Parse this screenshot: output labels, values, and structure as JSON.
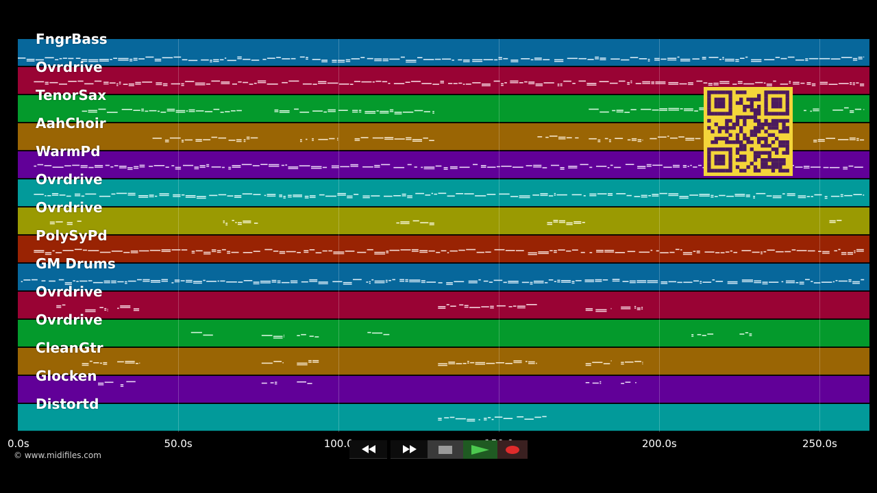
{
  "colors": {
    "background": "#000000",
    "qr_light": "#f4d53a",
    "qr_dark": "#4b1a5e"
  },
  "timeline": {
    "duration_seconds": 265.5,
    "ticks": [
      {
        "seconds": 0,
        "label": "0.0s"
      },
      {
        "seconds": 50,
        "label": "50.0s"
      },
      {
        "seconds": 100,
        "label": "100.0"
      },
      {
        "seconds": 150,
        "label": "150.0"
      },
      {
        "seconds": 200,
        "label": "200.0s"
      },
      {
        "seconds": 250,
        "label": "250.0s"
      }
    ]
  },
  "tracks": [
    {
      "name": "FngrBass",
      "color": "#07679b",
      "note_color": "#d9ecf7",
      "segments": [
        [
          0,
          264,
          0.7
        ]
      ]
    },
    {
      "name": "Ovrdrive",
      "color": "#990334",
      "note_color": "#f6d6df",
      "segments": [
        [
          5,
          264,
          0.55
        ]
      ]
    },
    {
      "name": "TenorSax",
      "color": "#049a2c",
      "note_color": "#d6f5de",
      "segments": [
        [
          20,
          70,
          0.55
        ],
        [
          80,
          130,
          0.55
        ],
        [
          178,
          200,
          0.55
        ],
        [
          200,
          215,
          0.5
        ],
        [
          245,
          250,
          0.55
        ],
        [
          254,
          264,
          0.5
        ]
      ]
    },
    {
      "name": "AahChoir",
      "color": "#9a6504",
      "note_color": "#f6e7cc",
      "segments": [
        [
          42,
          75,
          0.55
        ],
        [
          88,
          100,
          0.55
        ],
        [
          105,
          130,
          0.55
        ],
        [
          162,
          175,
          0.5
        ],
        [
          178,
          195,
          0.55
        ],
        [
          197,
          213,
          0.5
        ],
        [
          248,
          264,
          0.55
        ]
      ]
    },
    {
      "name": "WarmPd",
      "color": "#610098",
      "note_color": "#ead6f6",
      "segments": [
        [
          5,
          264,
          0.52
        ]
      ]
    },
    {
      "name": "Ovrdrive",
      "color": "#029a9a",
      "note_color": "#d6f4f4",
      "segments": [
        [
          5,
          264,
          0.55
        ]
      ]
    },
    {
      "name": "Ovrdrive",
      "color": "#9a9a02",
      "note_color": "#f6f6d6",
      "segments": [
        [
          10,
          20,
          0.5
        ],
        [
          64,
          75,
          0.5
        ],
        [
          118,
          130,
          0.5
        ],
        [
          165,
          177,
          0.48
        ],
        [
          253,
          257,
          0.5
        ]
      ]
    },
    {
      "name": "PolySyPd",
      "color": "#992303",
      "note_color": "#f6dcd6",
      "segments": [
        [
          5,
          264,
          0.55
        ]
      ]
    },
    {
      "name": "GM Drums",
      "color": "#07679b",
      "note_color": "#d9ecf7",
      "segments": [
        [
          1,
          264,
          0.62
        ]
      ]
    },
    {
      "name": "Ovrdrive",
      "color": "#990334",
      "note_color": "#f6d6df",
      "segments": [
        [
          12,
          15,
          0.45
        ],
        [
          21,
          28,
          0.6
        ],
        [
          31,
          38,
          0.55
        ],
        [
          131,
          162,
          0.5
        ],
        [
          177,
          185,
          0.6
        ],
        [
          188,
          195,
          0.55
        ]
      ]
    },
    {
      "name": "Ovrdrive",
      "color": "#049a2c",
      "note_color": "#d6f5de",
      "segments": [
        [
          54,
          61,
          0.5
        ],
        [
          76,
          83,
          0.55
        ],
        [
          87,
          94,
          0.55
        ],
        [
          109,
          116,
          0.5
        ],
        [
          210,
          217,
          0.5
        ],
        [
          225,
          229,
          0.5
        ]
      ]
    },
    {
      "name": "CleanGtr",
      "color": "#9a6504",
      "note_color": "#f6e7cc",
      "segments": [
        [
          20,
          28,
          0.5
        ],
        [
          31,
          38,
          0.5
        ],
        [
          76,
          83,
          0.5
        ],
        [
          87,
          94,
          0.5
        ],
        [
          131,
          162,
          0.5
        ],
        [
          177,
          185,
          0.5
        ],
        [
          188,
          195,
          0.5
        ]
      ]
    },
    {
      "name": "Glocken",
      "color": "#610098",
      "note_color": "#ead6f6",
      "segments": [
        [
          25,
          30,
          0.25
        ],
        [
          32,
          37,
          0.25
        ],
        [
          76,
          81,
          0.25
        ],
        [
          87,
          92,
          0.25
        ],
        [
          177,
          182,
          0.25
        ],
        [
          188,
          193,
          0.25
        ]
      ]
    },
    {
      "name": "Distortd",
      "color": "#029a9a",
      "note_color": "#d6f4f4",
      "segments": [
        [
          131,
          165,
          0.5
        ]
      ]
    }
  ],
  "transport": {
    "buttons": [
      {
        "name": "rewind-button",
        "icon": "rewind-icon"
      },
      {
        "name": "fast-forward-button",
        "icon": "fast-forward-icon"
      },
      {
        "name": "stop-button",
        "icon": "stop-icon"
      },
      {
        "name": "play-button",
        "icon": "play-icon"
      },
      {
        "name": "record-button",
        "icon": "record-icon"
      }
    ]
  },
  "copyright": "© www.midifiles.com",
  "qr_code": {
    "icon": "qr-code-icon"
  }
}
